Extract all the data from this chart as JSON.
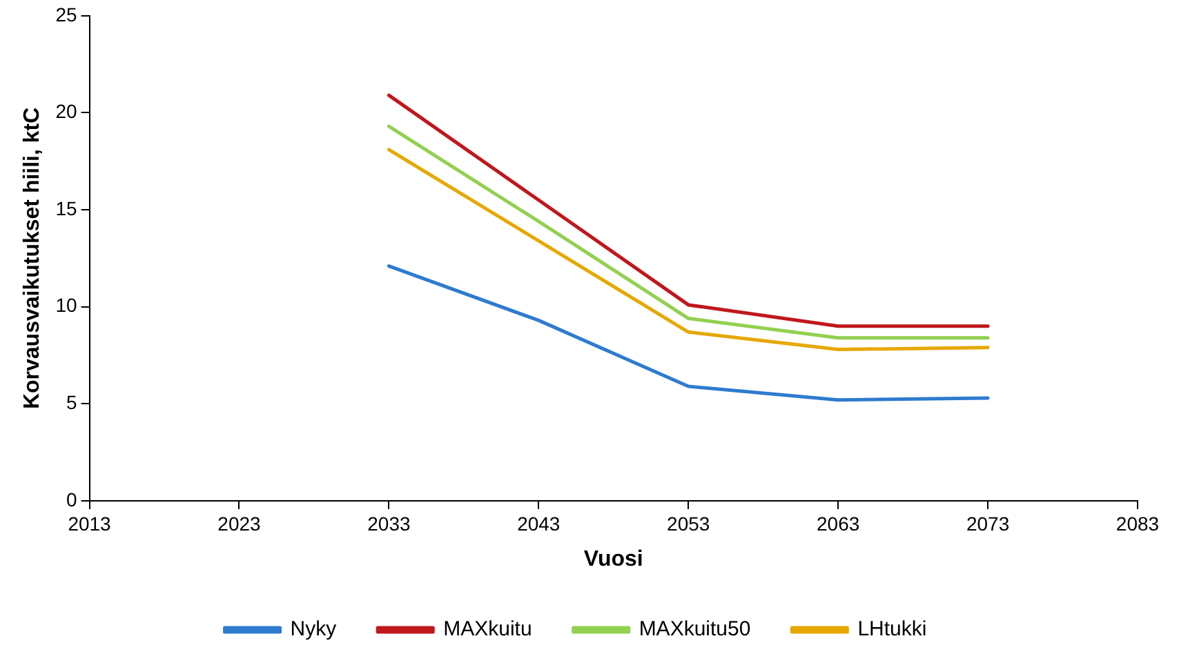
{
  "chart_data": {
    "type": "line",
    "xlabel": "Vuosi",
    "ylabel": "Korvausvaikutukset hiili, ktC",
    "x": [
      2033,
      2043,
      2053,
      2063,
      2073
    ],
    "series": [
      {
        "name": "Nyky",
        "color": "#2e7bcf",
        "values": [
          12.1,
          9.3,
          5.9,
          5.2,
          5.3
        ]
      },
      {
        "name": "MAXkuitu",
        "color": "#c0171c",
        "values": [
          20.9,
          15.5,
          10.1,
          9.0,
          9.0
        ]
      },
      {
        "name": "MAXkuitu50",
        "color": "#92d050",
        "values": [
          19.3,
          14.4,
          9.4,
          8.4,
          8.4
        ]
      },
      {
        "name": "LHtukki",
        "color": "#e6a800",
        "values": [
          18.1,
          13.4,
          8.7,
          7.8,
          7.9
        ]
      }
    ],
    "xlim": [
      2013,
      2083
    ],
    "xticks": [
      2013,
      2023,
      2033,
      2043,
      2053,
      2063,
      2073,
      2083
    ],
    "ylim": [
      0,
      25
    ],
    "yticks": [
      0,
      5,
      10,
      15,
      20,
      25
    ],
    "grid": false,
    "legend": "bottom",
    "marker": "none",
    "line_style": "solid"
  }
}
